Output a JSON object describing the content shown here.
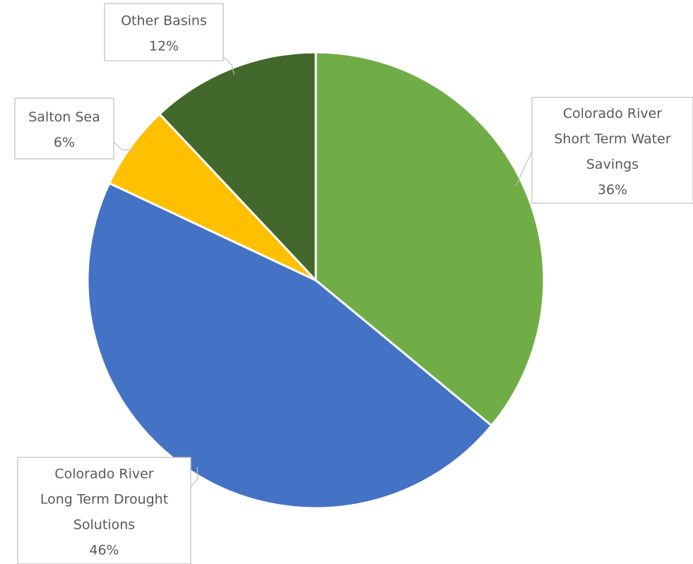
{
  "chart_data": {
    "type": "pie",
    "title": "",
    "start_angle_deg": 0,
    "direction": "clockwise",
    "slices": [
      {
        "label_lines": [
          "Colorado River",
          "Short Term Water",
          "Savings"
        ],
        "value": 36,
        "percent_label": "36%",
        "color": "#70ad47"
      },
      {
        "label_lines": [
          "Colorado River",
          "Long Term Drought",
          "Solutions"
        ],
        "value": 46,
        "percent_label": "46%",
        "color": "#4472c4"
      },
      {
        "label_lines": [
          "Salton Sea"
        ],
        "value": 6,
        "percent_label": "6%",
        "color": "#ffc000"
      },
      {
        "label_lines": [
          "Other Basins"
        ],
        "value": 12,
        "percent_label": "12%",
        "color": "#43682b"
      }
    ],
    "legend": "none"
  }
}
